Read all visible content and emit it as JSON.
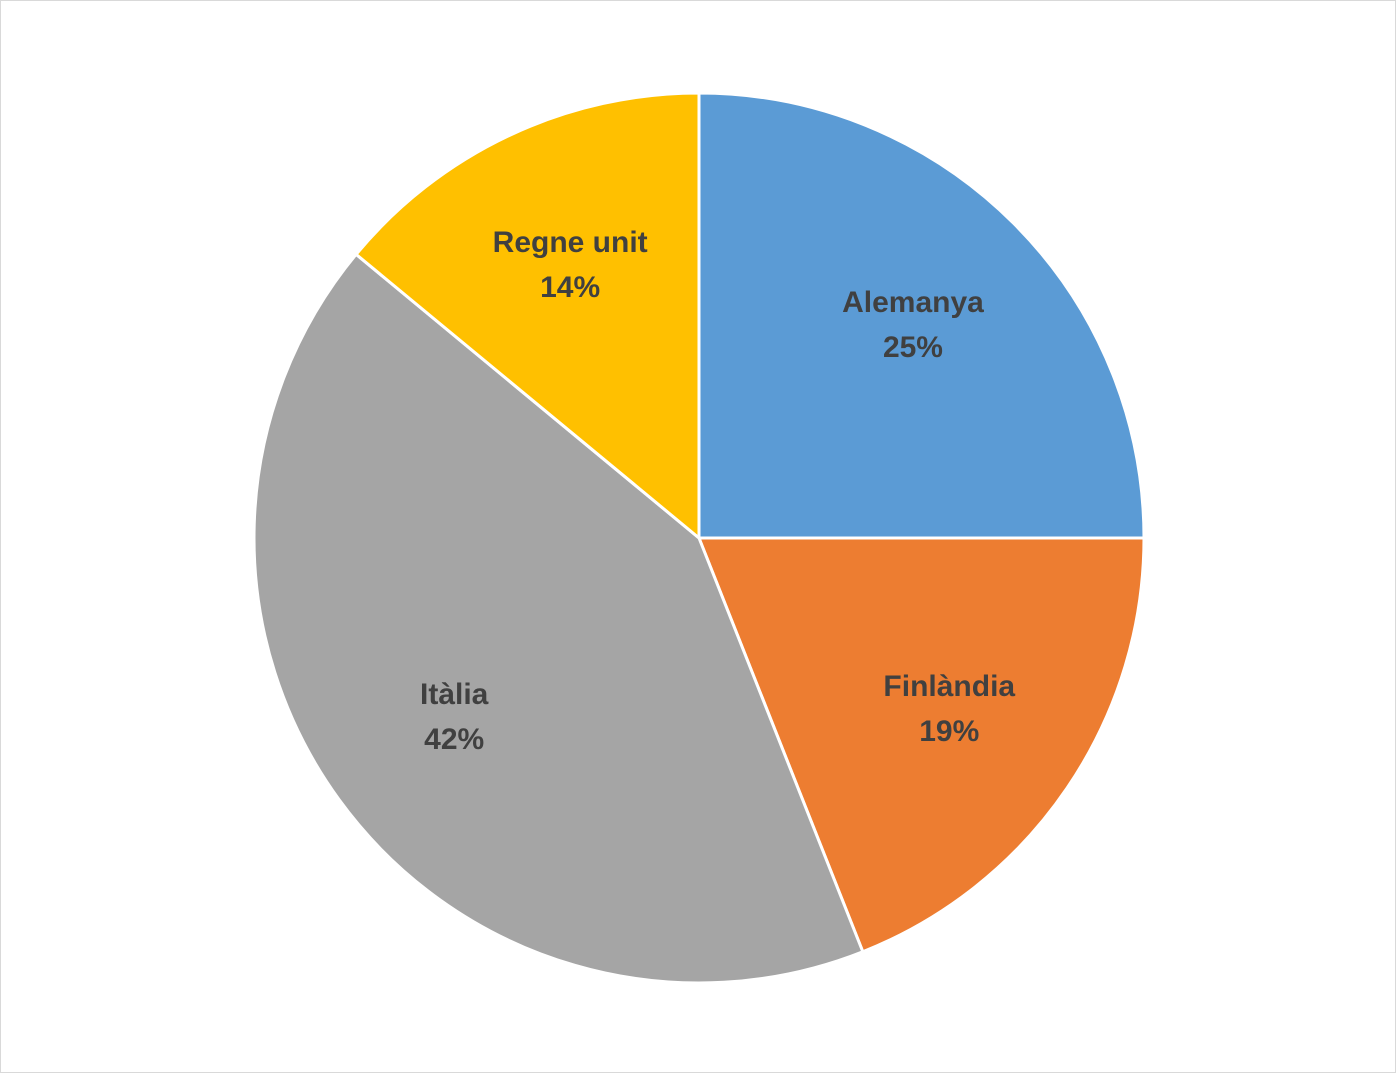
{
  "chart_data": {
    "type": "pie",
    "categories": [
      "Alemanya",
      "Finlàndia",
      "Itàlia",
      "Regne unit"
    ],
    "values": [
      25,
      19,
      42,
      14
    ],
    "percent_labels": [
      "25%",
      "19%",
      "42%",
      "14%"
    ],
    "colors": [
      "#5B9BD5",
      "#ED7D31",
      "#A5A5A5",
      "#FFC000"
    ],
    "start_angle_deg": 0,
    "direction": "clockwise",
    "legend": "none",
    "data_labels": "category name and percentage, inside slices",
    "label_color": "#404040",
    "border_color": "#D9D9D9",
    "slice_separator_color": "#FFFFFF"
  }
}
